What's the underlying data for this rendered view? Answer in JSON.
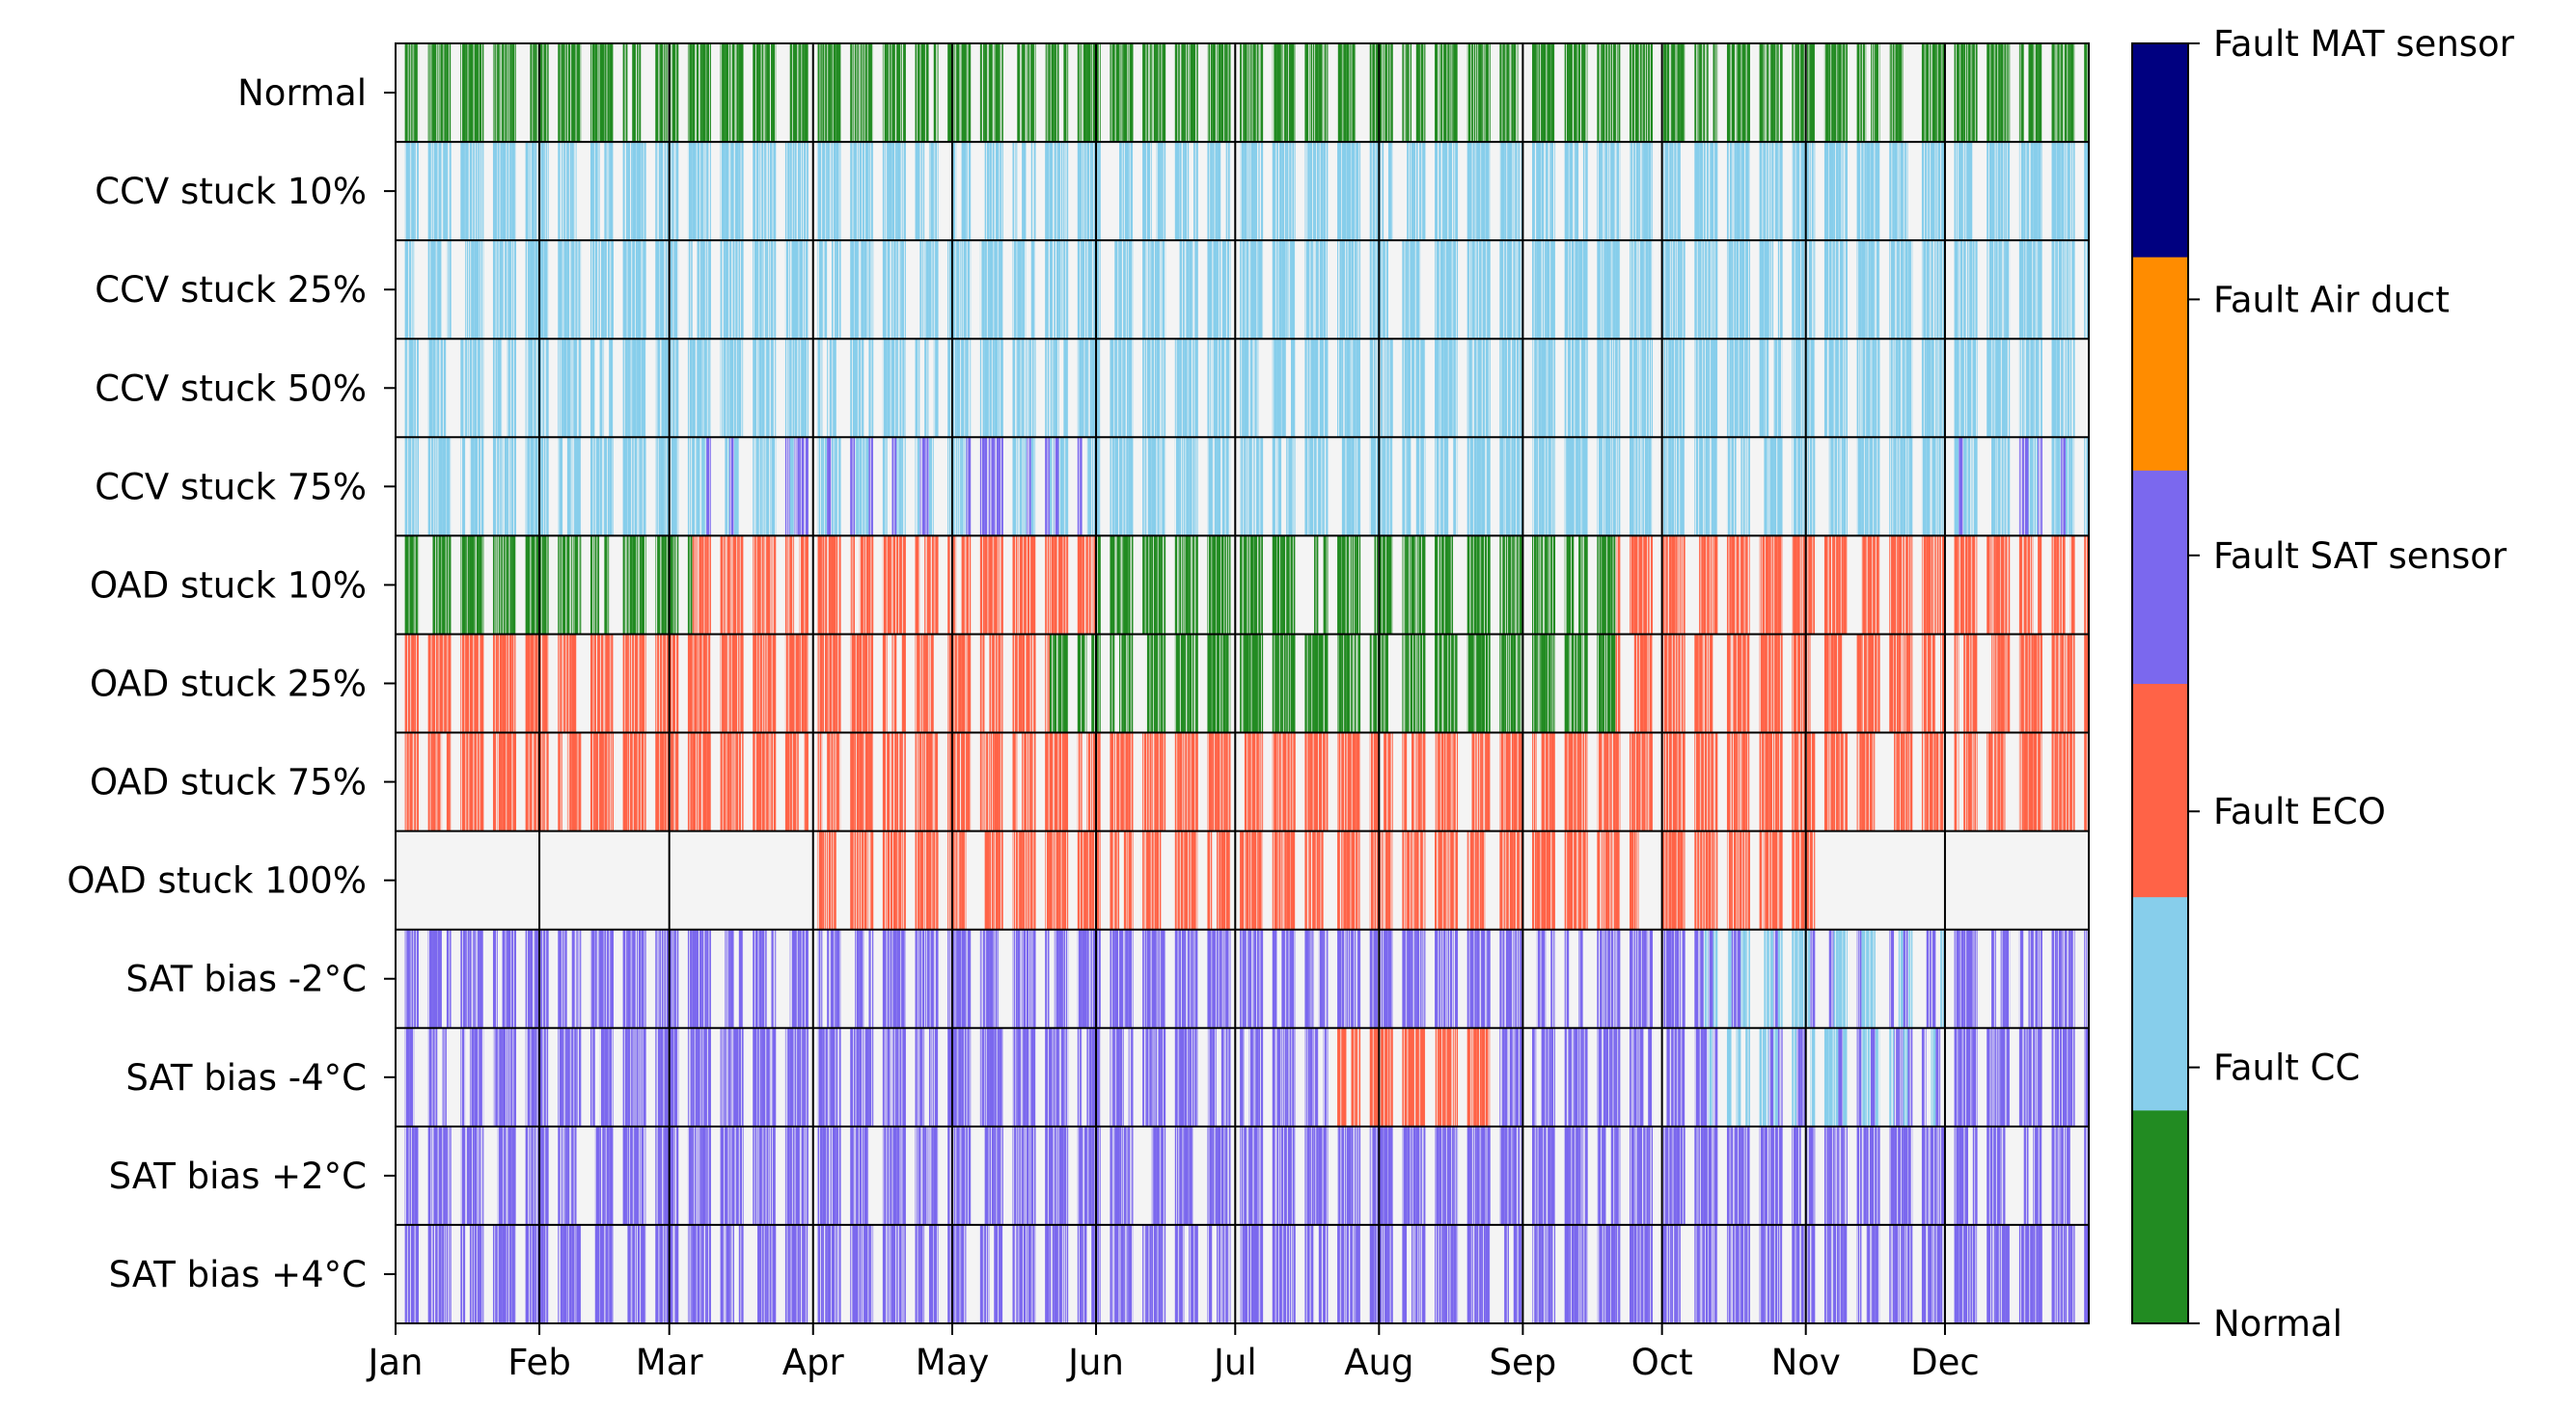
{
  "chart_data": {
    "type": "heatmap",
    "title": "",
    "xlabel": "",
    "ylabel": "",
    "x_tick_labels": [
      "Jan",
      "Feb",
      "Mar",
      "Apr",
      "May",
      "Jun",
      "Jul",
      "Aug",
      "Sep",
      "Oct",
      "Nov",
      "Dec"
    ],
    "month_days": [
      31,
      28,
      31,
      30,
      31,
      30,
      31,
      31,
      30,
      31,
      30,
      31
    ],
    "xlim": [
      0,
      365
    ],
    "rows": [
      "Normal",
      "CCV stuck 10%",
      "CCV stuck 25%",
      "CCV stuck 50%",
      "CCV stuck 75%",
      "OAD stuck 10%",
      "OAD stuck 25%",
      "OAD stuck 75%",
      "OAD stuck 100%",
      "SAT bias -2°C",
      "SAT bias -4°C",
      "SAT bias +2°C",
      "SAT bias +4°C"
    ],
    "colorbar": {
      "labels": [
        "Normal",
        "Fault CC",
        "Fault ECO",
        "Fault SAT sensor",
        "Fault Air duct",
        "Fault MAT sensor"
      ],
      "colors": [
        "#228b22",
        "#87ceeb",
        "#ff6347",
        "#7b68ee",
        "#ff8c00",
        "#000080"
      ]
    },
    "background_color": "#f4f4f4",
    "occupancy_pattern": "weekday operation, weekends idle",
    "row_fault_class": {
      "Normal": "Normal",
      "CCV stuck 10%": "Fault CC",
      "CCV stuck 25%": "Fault CC",
      "CCV stuck 50%": "Fault CC",
      "CCV stuck 75%": "Fault CC (Fault SAT sensor on some days)",
      "OAD stuck 10%": "Normal in winter/summer, Fault ECO in spring/autumn",
      "OAD stuck 25%": "Fault ECO in winter/spring/autumn, Normal in summer",
      "OAD stuck 75%": "Fault ECO",
      "OAD stuck 100%": "Fault ECO (Apr to Oct only)",
      "SAT bias -2°C": "Fault SAT sensor (Fault CC in Oct-Nov)",
      "SAT bias -4°C": "Fault SAT sensor (Fault ECO in Jul-Aug, Fault CC in Oct-Nov)",
      "SAT bias +2°C": "Fault SAT sensor",
      "SAT bias +4°C": "Fault SAT sensor"
    }
  }
}
